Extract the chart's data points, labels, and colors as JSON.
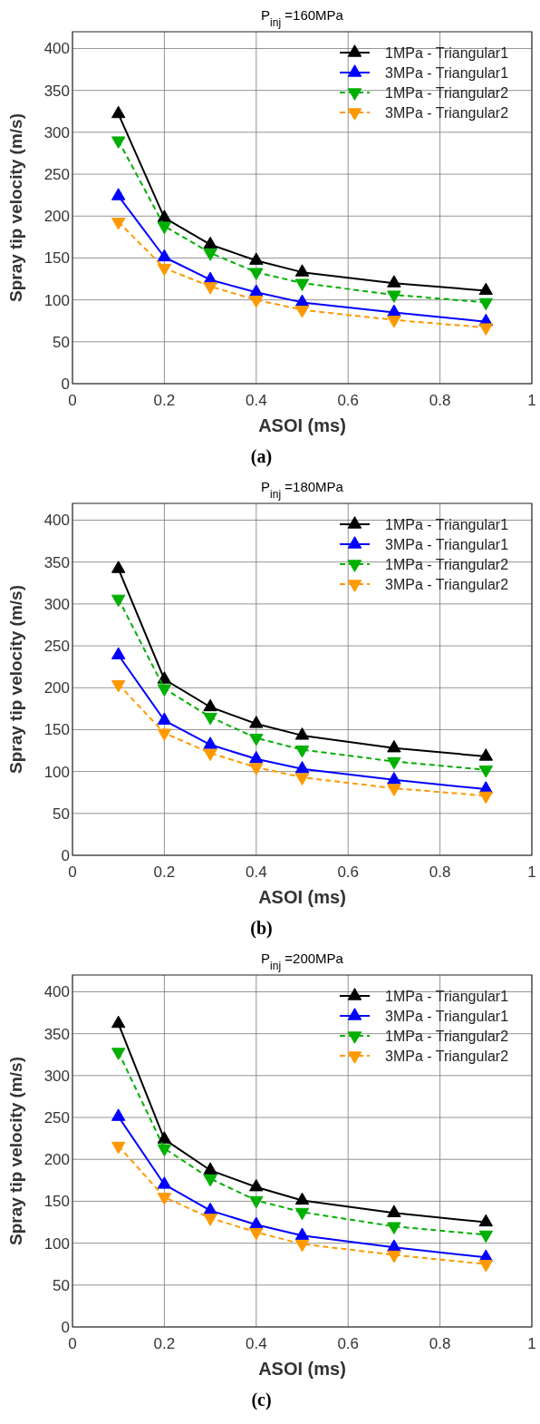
{
  "chart_data": [
    {
      "type": "line",
      "title": "P$_{inj}$ =160MPa",
      "xlabel": "ASOI (ms)",
      "ylabel": "Spray tip velocity (m/s)",
      "annotations": [
        "(a)"
      ],
      "x": [
        0.1,
        0.2,
        0.3,
        0.4,
        0.5,
        0.7,
        0.9
      ],
      "xlim": [
        0,
        1
      ],
      "xticks": [
        0,
        0.2,
        0.4,
        0.6,
        0.8,
        1
      ],
      "ylim": [
        0,
        420
      ],
      "yticks": [
        0,
        50,
        100,
        150,
        200,
        250,
        300,
        350,
        400
      ],
      "grid": true,
      "legend": "top right",
      "series": [
        {
          "name": "1MPa - Triangular1",
          "color": "#000000",
          "marker": "triangle",
          "line_style": "solid",
          "values": [
            322,
            198,
            166,
            147,
            133,
            120,
            111
          ]
        },
        {
          "name": "3MPa - Triangular1",
          "color": "#0000ff",
          "marker": "triangle",
          "line_style": "solid",
          "values": [
            224,
            151,
            124,
            109,
            97,
            85,
            74
          ]
        },
        {
          "name": "1MPa - Triangular2",
          "color": "#00b000",
          "marker": "triangle-down",
          "line_style": "dashed",
          "values": [
            290,
            188,
            156,
            133,
            120,
            106,
            97
          ]
        },
        {
          "name": "3MPa - Triangular2",
          "color": "#ff9900",
          "marker": "triangle-down",
          "line_style": "dashed",
          "values": [
            193,
            138,
            116,
            100,
            88,
            76,
            67
          ]
        }
      ]
    },
    {
      "type": "line",
      "title": "P$_{inj}$ =180MPa",
      "xlabel": "ASOI (ms)",
      "ylabel": "Spray tip velocity (m/s)",
      "annotations": [
        "(b)"
      ],
      "x": [
        0.1,
        0.2,
        0.3,
        0.4,
        0.5,
        0.7,
        0.9
      ],
      "xlim": [
        0,
        1
      ],
      "xticks": [
        0,
        0.2,
        0.4,
        0.6,
        0.8,
        1
      ],
      "ylim": [
        0,
        420
      ],
      "yticks": [
        0,
        50,
        100,
        150,
        200,
        250,
        300,
        350,
        400
      ],
      "grid": true,
      "legend": "top right",
      "series": [
        {
          "name": "1MPa - Triangular1",
          "color": "#000000",
          "marker": "triangle",
          "line_style": "solid",
          "values": [
            342,
            210,
            177,
            157,
            143,
            128,
            118
          ]
        },
        {
          "name": "3MPa - Triangular1",
          "color": "#0000ff",
          "marker": "triangle",
          "line_style": "solid",
          "values": [
            239,
            161,
            132,
            115,
            103,
            90,
            79
          ]
        },
        {
          "name": "1MPa - Triangular2",
          "color": "#00b000",
          "marker": "triangle-down",
          "line_style": "dashed",
          "values": [
            306,
            199,
            165,
            140,
            126,
            112,
            102
          ]
        },
        {
          "name": "3MPa - Triangular2",
          "color": "#ff9900",
          "marker": "triangle-down",
          "line_style": "dashed",
          "values": [
            204,
            146,
            122,
            105,
            93,
            80,
            71
          ]
        }
      ]
    },
    {
      "type": "line",
      "title": "P$_{inj}$ =200MPa",
      "xlabel": "ASOI (ms)",
      "ylabel": "Spray tip velocity (m/s)",
      "annotations": [
        "(c)"
      ],
      "x": [
        0.1,
        0.2,
        0.3,
        0.4,
        0.5,
        0.7,
        0.9
      ],
      "xlim": [
        0,
        1
      ],
      "xticks": [
        0,
        0.2,
        0.4,
        0.6,
        0.8,
        1
      ],
      "ylim": [
        0,
        420
      ],
      "yticks": [
        0,
        50,
        100,
        150,
        200,
        250,
        300,
        350,
        400
      ],
      "grid": true,
      "legend": "top right",
      "series": [
        {
          "name": "1MPa - Triangular1",
          "color": "#000000",
          "marker": "triangle",
          "line_style": "solid",
          "values": [
            362,
            224,
            187,
            167,
            151,
            136,
            125
          ]
        },
        {
          "name": "3MPa - Triangular1",
          "color": "#0000ff",
          "marker": "triangle",
          "line_style": "solid",
          "values": [
            251,
            170,
            139,
            122,
            109,
            95,
            83
          ]
        },
        {
          "name": "1MPa - Triangular2",
          "color": "#00b000",
          "marker": "triangle-down",
          "line_style": "dashed",
          "values": [
            328,
            213,
            177,
            151,
            137,
            120,
            110
          ]
        },
        {
          "name": "3MPa - Triangular2",
          "color": "#ff9900",
          "marker": "triangle-down",
          "line_style": "dashed",
          "values": [
            216,
            155,
            130,
            113,
            99,
            86,
            75
          ]
        }
      ]
    }
  ]
}
